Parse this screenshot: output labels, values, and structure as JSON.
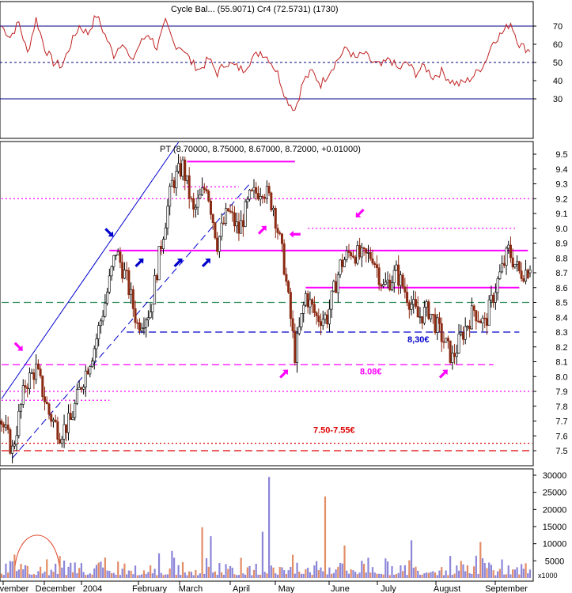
{
  "colors": {
    "up": "#ffffff",
    "down": "#8b2a12",
    "rsi_line": "#c02020",
    "frame": "#000080",
    "magenta": "#ff00ff",
    "blue": "#0000cc",
    "red": "#dd0000",
    "green": "#2e8b57",
    "vol_a": "#8c86d8",
    "vol_b": "#e28c66",
    "grid": "#8080c0"
  },
  "rsi_panel": {
    "title": "Cycle Bal... (55.9071)  Cr4 (72.5731)  (1730)",
    "ticks": [
      "70",
      "60",
      "50",
      "40",
      "30"
    ]
  },
  "price_panel": {
    "legend": "PT (8.70000, 8.75000, 8.67000, 8.72000, +0.01000)",
    "ticks": [
      "9.5",
      "9.4",
      "9.3",
      "9.2",
      "9.1",
      "9.0",
      "8.9",
      "8.8",
      "8.7",
      "8.6",
      "8.5",
      "8.4",
      "8.3",
      "8.2",
      "8.1",
      "8.0",
      "7.9",
      "7.8",
      "7.7",
      "7.6",
      "7.5"
    ],
    "annotations": [
      {
        "text": "8,30€",
        "y": 8.3,
        "color": "blue"
      },
      {
        "text": "8.08€",
        "y": 8.08,
        "color": "magenta"
      },
      {
        "text": "7.50-7.55€",
        "y": 7.55,
        "color": "red"
      }
    ]
  },
  "volume_panel": {
    "ticks": [
      "30000",
      "25000",
      "20000",
      "15000",
      "10000",
      "5000"
    ],
    "unit": "x1000"
  },
  "x_axis": {
    "labels": [
      "vember",
      "December",
      "2004",
      "February",
      "March",
      "April",
      "May",
      "June",
      "July",
      "August",
      "September"
    ]
  },
  "chart_data": {
    "type": "candlestick",
    "title": "PT (8.70000, 8.75000, 8.67000, 8.72000, +0.01000)",
    "last_bar": {
      "open": 8.7,
      "high": 8.75,
      "low": 8.67,
      "close": 8.72,
      "change": 0.01
    },
    "ylim_price": [
      7.45,
      9.55
    ],
    "ylim_rsi": [
      20,
      78
    ],
    "ylim_volume": [
      0,
      31000
    ],
    "price_path": [
      {
        "t": 0,
        "v": 7.7
      },
      {
        "t": 5,
        "v": 7.5
      },
      {
        "t": 11,
        "v": 7.95
      },
      {
        "t": 16,
        "v": 8.05
      },
      {
        "t": 22,
        "v": 7.75
      },
      {
        "t": 27,
        "v": 7.62
      },
      {
        "t": 32,
        "v": 7.7
      },
      {
        "t": 37,
        "v": 7.95
      },
      {
        "t": 43,
        "v": 8.2
      },
      {
        "t": 48,
        "v": 8.5
      },
      {
        "t": 53,
        "v": 8.85
      },
      {
        "t": 58,
        "v": 8.65
      },
      {
        "t": 63,
        "v": 8.35
      },
      {
        "t": 69,
        "v": 8.45
      },
      {
        "t": 74,
        "v": 8.9
      },
      {
        "t": 79,
        "v": 9.3
      },
      {
        "t": 84,
        "v": 9.42
      },
      {
        "t": 89,
        "v": 9.1
      },
      {
        "t": 95,
        "v": 9.3
      },
      {
        "t": 100,
        "v": 8.9
      },
      {
        "t": 105,
        "v": 9.12
      },
      {
        "t": 110,
        "v": 8.98
      },
      {
        "t": 115,
        "v": 9.2
      },
      {
        "t": 121,
        "v": 9.28
      },
      {
        "t": 126,
        "v": 9.15
      },
      {
        "t": 131,
        "v": 8.75
      },
      {
        "t": 136,
        "v": 8.15
      },
      {
        "t": 141,
        "v": 8.55
      },
      {
        "t": 146,
        "v": 8.4
      },
      {
        "t": 151,
        "v": 8.4
      },
      {
        "t": 157,
        "v": 8.75
      },
      {
        "t": 162,
        "v": 8.85
      },
      {
        "t": 167,
        "v": 8.8
      },
      {
        "t": 172,
        "v": 8.82
      },
      {
        "t": 177,
        "v": 8.6
      },
      {
        "t": 183,
        "v": 8.7
      },
      {
        "t": 188,
        "v": 8.55
      },
      {
        "t": 193,
        "v": 8.4
      },
      {
        "t": 198,
        "v": 8.45
      },
      {
        "t": 203,
        "v": 8.3
      },
      {
        "t": 209,
        "v": 8.12
      },
      {
        "t": 214,
        "v": 8.3
      },
      {
        "t": 219,
        "v": 8.45
      },
      {
        "t": 224,
        "v": 8.35
      },
      {
        "t": 229,
        "v": 8.6
      },
      {
        "t": 235,
        "v": 8.85
      },
      {
        "t": 240,
        "v": 8.7
      },
      {
        "t": 244,
        "v": 8.72
      }
    ],
    "rsi_path": [
      {
        "t": 0,
        "v": 70
      },
      {
        "t": 4,
        "v": 64
      },
      {
        "t": 8,
        "v": 72
      },
      {
        "t": 12,
        "v": 55
      },
      {
        "t": 16,
        "v": 74
      },
      {
        "t": 20,
        "v": 58
      },
      {
        "t": 24,
        "v": 50
      },
      {
        "t": 28,
        "v": 48
      },
      {
        "t": 32,
        "v": 60
      },
      {
        "t": 36,
        "v": 70
      },
      {
        "t": 40,
        "v": 66
      },
      {
        "t": 44,
        "v": 76
      },
      {
        "t": 48,
        "v": 65
      },
      {
        "t": 52,
        "v": 54
      },
      {
        "t": 56,
        "v": 62
      },
      {
        "t": 60,
        "v": 50
      },
      {
        "t": 64,
        "v": 60
      },
      {
        "t": 68,
        "v": 66
      },
      {
        "t": 72,
        "v": 58
      },
      {
        "t": 76,
        "v": 72
      },
      {
        "t": 80,
        "v": 60
      },
      {
        "t": 84,
        "v": 58
      },
      {
        "t": 88,
        "v": 50
      },
      {
        "t": 92,
        "v": 46
      },
      {
        "t": 96,
        "v": 52
      },
      {
        "t": 100,
        "v": 44
      },
      {
        "t": 104,
        "v": 50
      },
      {
        "t": 108,
        "v": 48
      },
      {
        "t": 112,
        "v": 46
      },
      {
        "t": 116,
        "v": 52
      },
      {
        "t": 120,
        "v": 56
      },
      {
        "t": 124,
        "v": 52
      },
      {
        "t": 128,
        "v": 44
      },
      {
        "t": 132,
        "v": 30
      },
      {
        "t": 136,
        "v": 24
      },
      {
        "t": 140,
        "v": 40
      },
      {
        "t": 144,
        "v": 45
      },
      {
        "t": 148,
        "v": 38
      },
      {
        "t": 152,
        "v": 45
      },
      {
        "t": 156,
        "v": 52
      },
      {
        "t": 160,
        "v": 58
      },
      {
        "t": 164,
        "v": 52
      },
      {
        "t": 168,
        "v": 55
      },
      {
        "t": 172,
        "v": 50
      },
      {
        "t": 176,
        "v": 48
      },
      {
        "t": 180,
        "v": 52
      },
      {
        "t": 184,
        "v": 46
      },
      {
        "t": 188,
        "v": 50
      },
      {
        "t": 192,
        "v": 44
      },
      {
        "t": 196,
        "v": 48
      },
      {
        "t": 200,
        "v": 42
      },
      {
        "t": 204,
        "v": 45
      },
      {
        "t": 208,
        "v": 40
      },
      {
        "t": 212,
        "v": 38
      },
      {
        "t": 216,
        "v": 40
      },
      {
        "t": 220,
        "v": 44
      },
      {
        "t": 224,
        "v": 50
      },
      {
        "t": 228,
        "v": 62
      },
      {
        "t": 232,
        "v": 66
      },
      {
        "t": 236,
        "v": 72
      },
      {
        "t": 240,
        "v": 60
      },
      {
        "t": 244,
        "v": 57
      }
    ],
    "volume_spikes": [
      {
        "t": 124,
        "v": 29500
      },
      {
        "t": 150,
        "v": 23800
      },
      {
        "t": 93,
        "v": 14800
      },
      {
        "t": 97,
        "v": 12200
      },
      {
        "t": 222,
        "v": 10500
      },
      {
        "t": 190,
        "v": 11000
      },
      {
        "t": 121,
        "v": 13500
      },
      {
        "t": 159,
        "v": 9500
      }
    ],
    "horizontal_levels": [
      {
        "price": 9.45,
        "color": "magenta",
        "style": "solid",
        "from_t": 86,
        "to_t": 136
      },
      {
        "price": 9.28,
        "color": "magenta",
        "style": "dotted",
        "from_t": 84,
        "to_t": 110
      },
      {
        "price": 9.2,
        "color": "magenta",
        "style": "dotted",
        "from_t": 0,
        "to_t": 246
      },
      {
        "price": 9.0,
        "color": "magenta",
        "style": "dotted",
        "from_t": 142,
        "to_t": 238
      },
      {
        "price": 8.85,
        "color": "magenta",
        "style": "solid",
        "from_t": 50,
        "to_t": 244
      },
      {
        "price": 8.6,
        "color": "magenta",
        "style": "solid",
        "from_t": 141,
        "to_t": 240
      },
      {
        "price": 8.5,
        "color": "green",
        "style": "dashed",
        "from_t": 0,
        "to_t": 246
      },
      {
        "price": 8.3,
        "color": "blue",
        "style": "dashed",
        "from_t": 58,
        "to_t": 240
      },
      {
        "price": 8.08,
        "color": "magenta",
        "style": "dashed",
        "from_t": 0,
        "to_t": 228
      },
      {
        "price": 7.84,
        "color": "magenta",
        "style": "dotted",
        "from_t": 0,
        "to_t": 50
      },
      {
        "price": 7.9,
        "color": "magenta",
        "style": "dotted",
        "from_t": 0,
        "to_t": 246
      },
      {
        "price": 7.55,
        "color": "red",
        "style": "dotted",
        "from_t": 0,
        "to_t": 246
      },
      {
        "price": 7.5,
        "color": "red",
        "style": "dashed",
        "from_t": 0,
        "to_t": 246
      }
    ],
    "trend_lines": [
      {
        "from": {
          "t": 0,
          "v": 7.85
        },
        "to": {
          "t": 82,
          "v": 9.58
        },
        "style": "solid"
      },
      {
        "from": {
          "t": 5,
          "v": 7.45
        },
        "to": {
          "t": 115,
          "v": 9.3
        },
        "style": "dashed"
      }
    ],
    "rsi_levels": [
      70,
      50,
      30
    ]
  }
}
